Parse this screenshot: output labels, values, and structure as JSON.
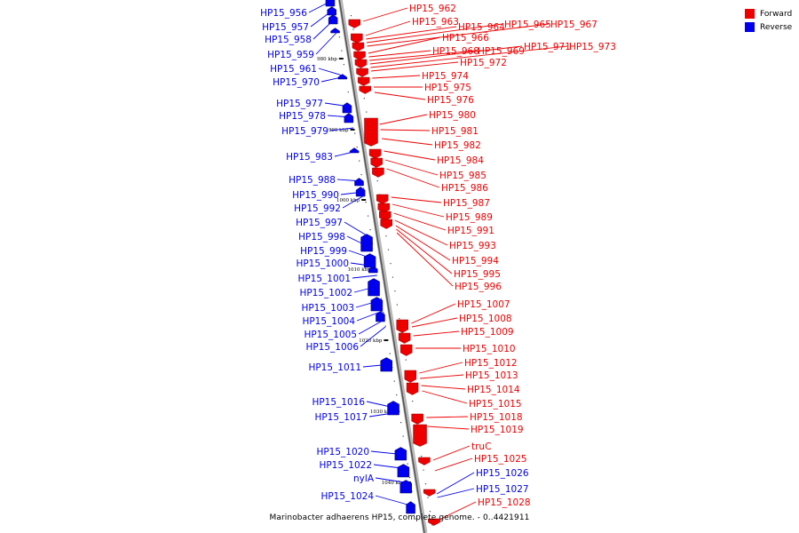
{
  "legend": {
    "forward": {
      "label": "Forward",
      "color": "#ee0000"
    },
    "reverse": {
      "label": "Reverse",
      "color": "#0000ee"
    }
  },
  "caption": "Marinobacter adhaerens HP15, complete genome. - 0..4421911",
  "ticks": [
    "980 kbp",
    "990 kbp",
    "1000 kbp",
    "1010 kbp",
    "1020 kbp",
    "1030 kbp",
    "1040 kbp"
  ],
  "reverse_genes": [
    "HP15_956",
    "HP15_957",
    "HP15_958",
    "HP15_959",
    "HP15_961",
    "HP15_970",
    "HP15_977",
    "HP15_978",
    "HP15_979",
    "HP15_983",
    "HP15_988",
    "HP15_990",
    "HP15_992",
    "HP15_997",
    "HP15_998",
    "HP15_999",
    "HP15_1000",
    "HP15_1001",
    "HP15_1002",
    "HP15_1003",
    "HP15_1004",
    "HP15_1005",
    "HP15_1006",
    "HP15_1011",
    "HP15_1016",
    "HP15_1017",
    "HP15_1020",
    "HP15_1022",
    "nylA",
    "HP15_1024"
  ],
  "forward_genes": [
    "HP15_962",
    "HP15_963",
    "HP15_964",
    "HP15_965",
    "HP15_967",
    "HP15_966",
    "HP15_968",
    "HP15_969",
    "HP15_971",
    "HP15_973",
    "HP15_972",
    "HP15_974",
    "HP15_975",
    "HP15_976",
    "HP15_980",
    "HP15_981",
    "HP15_982",
    "HP15_984",
    "HP15_985",
    "HP15_986",
    "HP15_987",
    "HP15_989",
    "HP15_991",
    "HP15_993",
    "HP15_994",
    "HP15_995",
    "HP15_996",
    "HP15_1007",
    "HP15_1008",
    "HP15_1009",
    "HP15_1010",
    "HP15_1012",
    "HP15_1013",
    "HP15_1014",
    "HP15_1015",
    "HP15_1018",
    "HP15_1019",
    "truC",
    "HP15_1025"
  ],
  "blue_right_genes": [
    "HP15_1026",
    "HP15_1027"
  ],
  "red_right_genes": [
    "HP15_1028"
  ]
}
